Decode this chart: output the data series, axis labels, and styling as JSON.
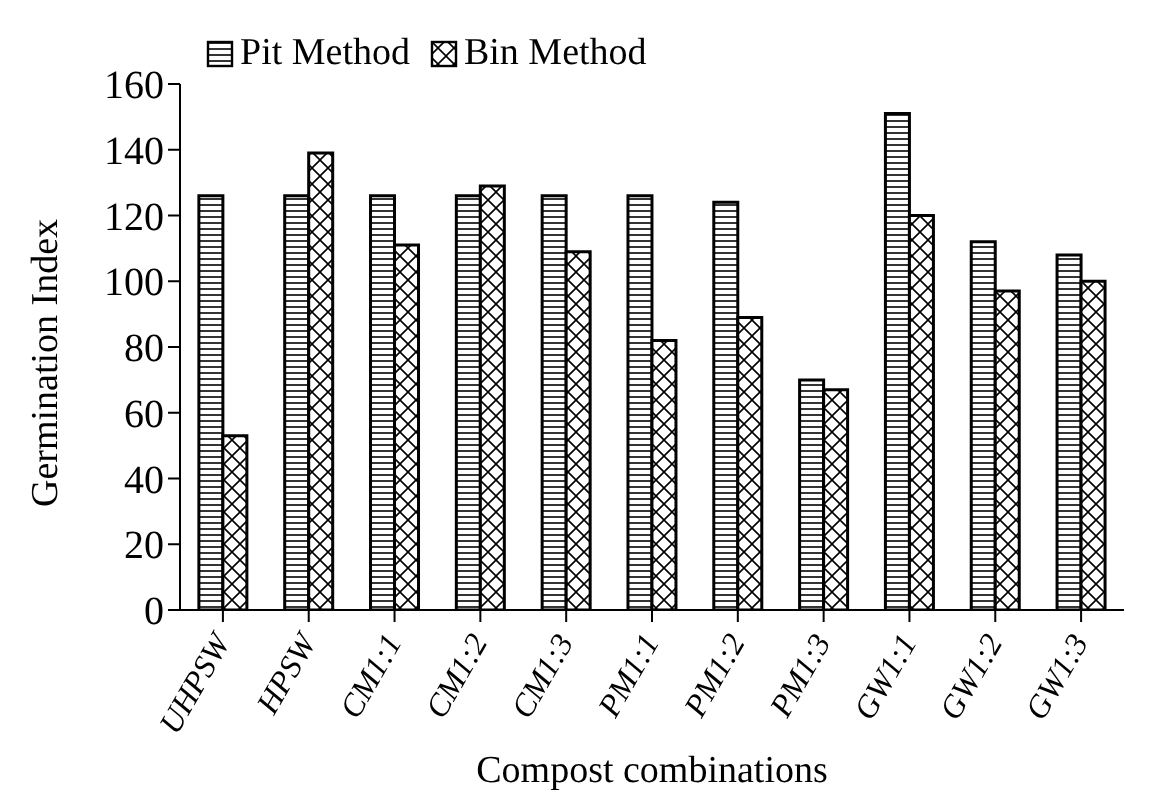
{
  "chart_data": {
    "type": "bar",
    "xlabel": "Compost combinations",
    "ylabel": "Germination Index",
    "categories": [
      "UHPSW",
      "HPSW",
      "CM1:1",
      "CM1:2",
      "CM1:3",
      "PM1:1",
      "PM1:2",
      "PM1:3",
      "GW1:1",
      "GW1:2",
      "GW1:3"
    ],
    "series": [
      {
        "name": "Pit Method",
        "color": "#000000",
        "values": [
          126,
          126,
          126,
          126,
          126,
          126,
          124,
          70,
          151,
          112,
          108
        ]
      },
      {
        "name": "Bin Method",
        "color": "#000000",
        "values": [
          53,
          139,
          111,
          129,
          109,
          82,
          89,
          67,
          120,
          97,
          100
        ]
      }
    ],
    "ylim": [
      0,
      160
    ],
    "yticks": [
      0,
      20,
      40,
      60,
      80,
      100,
      120,
      140,
      160
    ],
    "grid": false,
    "legend": "top left"
  }
}
